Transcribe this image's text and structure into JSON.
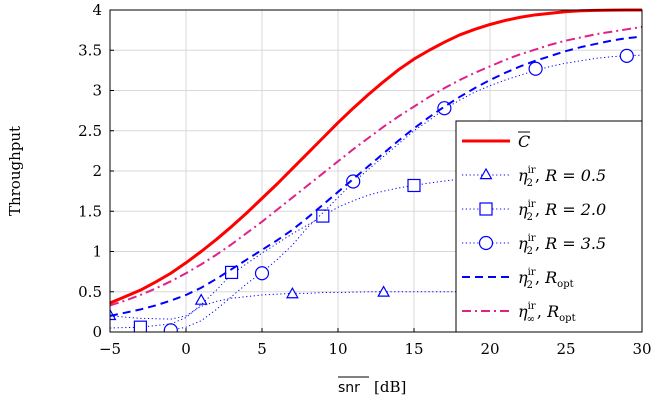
{
  "chart_data": {
    "type": "line",
    "xlabel_parts": {
      "main": "snr",
      "unit": "[dB]"
    },
    "ylabel": "Throughput",
    "xlim": [
      -5,
      30
    ],
    "ylim": [
      0,
      4
    ],
    "x_ticks": [
      -5,
      0,
      5,
      10,
      15,
      20,
      25,
      30
    ],
    "x_tick_labels": [
      "−5",
      "0",
      "5",
      "10",
      "15",
      "20",
      "25",
      "30"
    ],
    "y_ticks": [
      0,
      0.5,
      1,
      1.5,
      2,
      2.5,
      3,
      3.5,
      4
    ],
    "y_tick_labels": [
      "0",
      "0.5",
      "1",
      "1.5",
      "2",
      "2.5",
      "3",
      "3.5",
      "4"
    ],
    "grid": true,
    "legend_position": "bottom-right",
    "series": [
      {
        "legend": {
          "base": "C",
          "overline": true
        },
        "style": "solid",
        "color": "#ff0000",
        "marker": "none",
        "width": 3,
        "x": [
          -5,
          -4,
          -3,
          -2,
          -1,
          0,
          1,
          2,
          3,
          4,
          5,
          6,
          7,
          8,
          9,
          10,
          11,
          12,
          13,
          14,
          15,
          16,
          17,
          18,
          19,
          20,
          21,
          22,
          23,
          24,
          25,
          26,
          27,
          28,
          29,
          30
        ],
        "y": [
          0.36,
          0.44,
          0.52,
          0.62,
          0.73,
          0.86,
          1.0,
          1.15,
          1.31,
          1.48,
          1.66,
          1.84,
          2.03,
          2.22,
          2.41,
          2.6,
          2.78,
          2.95,
          3.11,
          3.26,
          3.39,
          3.5,
          3.6,
          3.69,
          3.76,
          3.82,
          3.87,
          3.91,
          3.94,
          3.96,
          3.98,
          3.99,
          3.995,
          3.998,
          4.0,
          4.0
        ]
      },
      {
        "legend": {
          "sym": "η",
          "sub": "2",
          "sup": "ir",
          "param": "R = 0.5"
        },
        "style": "dotted",
        "color": "#0000ff",
        "marker": "triangle",
        "width": 1,
        "x": [
          -5,
          -3,
          -1,
          0,
          1,
          2,
          3,
          4,
          5,
          6,
          7,
          8,
          9,
          10,
          12,
          14,
          16,
          18,
          20,
          24,
          30
        ],
        "y": [
          0.2,
          0.17,
          0.16,
          0.2,
          0.32,
          0.38,
          0.42,
          0.44,
          0.46,
          0.47,
          0.48,
          0.48,
          0.49,
          0.49,
          0.5,
          0.5,
          0.5,
          0.5,
          0.5,
          0.5,
          0.5
        ],
        "markers": [
          [
            -5,
            0.2
          ],
          [
            1,
            0.39
          ],
          [
            7,
            0.47
          ],
          [
            13,
            0.49
          ]
        ]
      },
      {
        "legend": {
          "sym": "η",
          "sub": "2",
          "sup": "ir",
          "param": "R = 2.0"
        },
        "style": "dotted",
        "color": "#0000ff",
        "marker": "square",
        "width": 1,
        "x": [
          -5,
          -3,
          -1,
          0,
          1,
          2,
          3,
          4,
          5,
          6,
          7,
          8,
          9,
          10,
          11,
          12,
          13,
          14,
          15,
          16,
          18,
          20
        ],
        "y": [
          0.05,
          0.06,
          0.1,
          0.18,
          0.34,
          0.52,
          0.72,
          0.85,
          0.98,
          1.1,
          1.22,
          1.33,
          1.44,
          1.55,
          1.63,
          1.7,
          1.75,
          1.79,
          1.82,
          1.85,
          1.9,
          1.94
        ],
        "markers": [
          [
            -3,
            0.06
          ],
          [
            3,
            0.74
          ],
          [
            9,
            1.44
          ],
          [
            15,
            1.82
          ]
        ]
      },
      {
        "legend": {
          "sym": "η",
          "sub": "2",
          "sup": "ir",
          "param": "R = 3.5"
        },
        "style": "dotted",
        "color": "#0000ff",
        "marker": "circle",
        "width": 1,
        "x": [
          -1,
          0,
          1,
          2,
          3,
          4,
          5,
          6,
          7,
          8,
          9,
          10,
          11,
          12,
          13,
          14,
          15,
          16,
          17,
          18,
          19,
          20,
          21,
          22,
          23,
          24,
          25,
          26,
          27,
          28,
          29,
          30
        ],
        "y": [
          0.02,
          0.06,
          0.14,
          0.28,
          0.44,
          0.6,
          0.74,
          0.9,
          1.08,
          1.3,
          1.48,
          1.67,
          1.86,
          2.02,
          2.18,
          2.34,
          2.5,
          2.63,
          2.77,
          2.88,
          2.98,
          3.06,
          3.13,
          3.19,
          3.25,
          3.3,
          3.34,
          3.37,
          3.4,
          3.42,
          3.43,
          3.44
        ],
        "markers": [
          [
            -1,
            0.02
          ],
          [
            5,
            0.73
          ],
          [
            11,
            1.87
          ],
          [
            17,
            2.78
          ],
          [
            23,
            3.27
          ],
          [
            29,
            3.43
          ]
        ]
      },
      {
        "legend": {
          "sym": "η",
          "sub": "2",
          "sup": "ir",
          "param": "R",
          "param_sub": "opt"
        },
        "style": "dashed",
        "color": "#0000ff",
        "marker": "none",
        "width": 2,
        "x": [
          -5,
          -4,
          -3,
          -2,
          -1,
          0,
          1,
          2,
          3,
          4,
          5,
          6,
          7,
          8,
          9,
          10,
          11,
          12,
          13,
          14,
          15,
          16,
          17,
          18,
          19,
          20,
          21,
          22,
          23,
          24,
          25,
          26,
          27,
          28,
          29,
          30
        ],
        "y": [
          0.2,
          0.24,
          0.28,
          0.33,
          0.39,
          0.46,
          0.55,
          0.66,
          0.78,
          0.9,
          1.02,
          1.14,
          1.27,
          1.42,
          1.58,
          1.74,
          1.9,
          2.06,
          2.22,
          2.38,
          2.53,
          2.67,
          2.8,
          2.92,
          3.03,
          3.13,
          3.22,
          3.3,
          3.37,
          3.43,
          3.49,
          3.54,
          3.58,
          3.62,
          3.65,
          3.67
        ]
      },
      {
        "legend": {
          "sym": "η",
          "sub": "∞",
          "sup": "ir",
          "param": "R",
          "param_sub": "opt"
        },
        "style": "dashdot",
        "color": "#e0218a",
        "marker": "none",
        "width": 2,
        "x": [
          -5,
          -4,
          -3,
          -2,
          -1,
          0,
          1,
          2,
          3,
          4,
          5,
          6,
          7,
          8,
          9,
          10,
          11,
          12,
          13,
          14,
          15,
          16,
          17,
          18,
          19,
          20,
          21,
          22,
          23,
          24,
          25,
          26,
          27,
          28,
          29,
          30
        ],
        "y": [
          0.33,
          0.39,
          0.46,
          0.54,
          0.63,
          0.73,
          0.84,
          0.96,
          1.09,
          1.23,
          1.37,
          1.52,
          1.67,
          1.82,
          1.97,
          2.12,
          2.27,
          2.41,
          2.55,
          2.68,
          2.8,
          2.92,
          3.03,
          3.13,
          3.22,
          3.3,
          3.38,
          3.45,
          3.51,
          3.57,
          3.62,
          3.66,
          3.7,
          3.73,
          3.76,
          3.79
        ]
      }
    ]
  }
}
